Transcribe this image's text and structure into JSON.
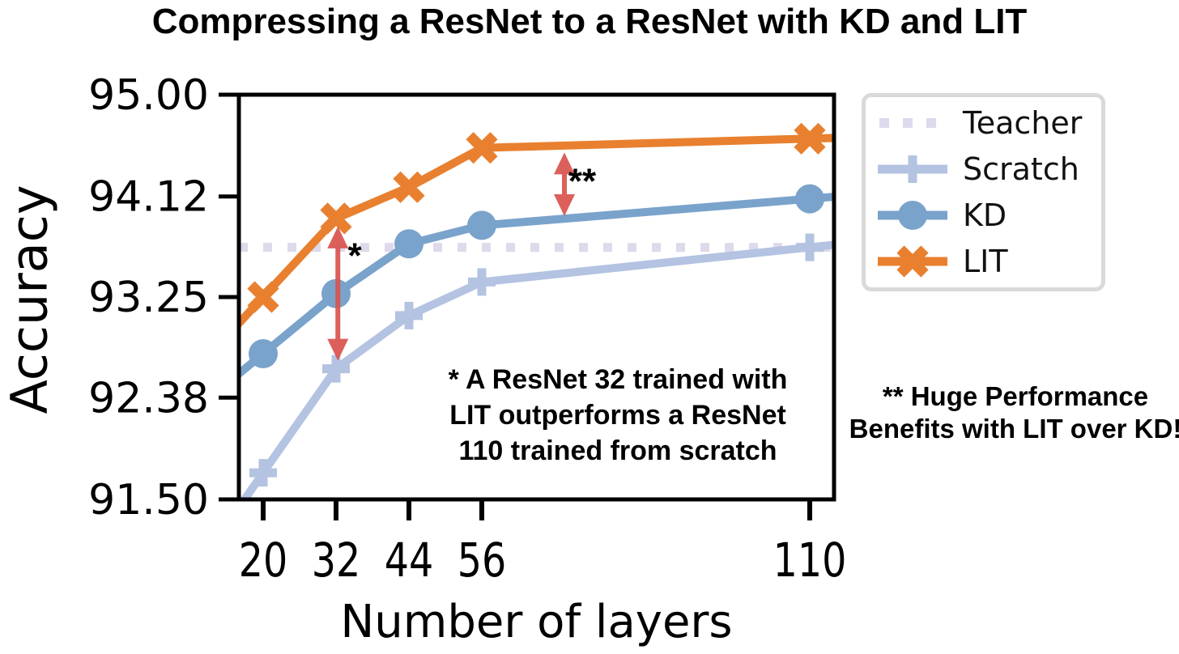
{
  "title": "Compressing a ResNet to a ResNet with KD and LIT",
  "chart_data": {
    "type": "line",
    "title": "Compressing a ResNet to a ResNet with KD and LIT",
    "xlabel": "Number of layers",
    "ylabel": "Accuracy",
    "x": [
      20,
      32,
      44,
      56,
      110
    ],
    "x_tick_labels": [
      "20",
      "32",
      "44",
      "56",
      "110"
    ],
    "y_ticks": [
      95.0,
      94.12,
      93.25,
      92.38,
      91.5
    ],
    "y_tick_labels": [
      "95.00",
      "94.12",
      "93.25",
      "92.38",
      "91.50"
    ],
    "xlim": [
      16,
      114
    ],
    "ylim": [
      91.5,
      95.0
    ],
    "grid": false,
    "legend_position": "upper right, outside axes",
    "series": [
      {
        "name": "Teacher",
        "style": "dotted",
        "marker": "none",
        "color": "#dedaec",
        "values": [
          93.68,
          93.68,
          93.68,
          93.68,
          93.68
        ],
        "note": "horizontal reference line at teacher accuracy"
      },
      {
        "name": "Scratch",
        "style": "solid",
        "marker": "plus",
        "color": "#b3c3e1",
        "values": [
          91.73,
          92.63,
          93.09,
          93.38,
          93.68
        ]
      },
      {
        "name": "KD",
        "style": "solid",
        "marker": "circle",
        "color": "#7aa3cb",
        "values": [
          92.76,
          93.28,
          93.71,
          93.87,
          94.1
        ]
      },
      {
        "name": "LIT",
        "style": "solid",
        "marker": "x",
        "color": "#e8802f",
        "values": [
          93.25,
          93.93,
          94.2,
          94.54,
          94.62
        ]
      }
    ],
    "arrows": [
      {
        "x": 32.3,
        "y_top": 93.86,
        "y_bottom": 92.7,
        "color": "#d9534f",
        "label": "*"
      },
      {
        "x": 69.6,
        "y_top": 94.5,
        "y_bottom": 93.95,
        "color": "#d9534f",
        "label": "**"
      }
    ]
  },
  "annotations": {
    "star1": "*",
    "star2": "**",
    "note_in_plot": "* A ResNet 32 trained with\nLIT outperforms a ResNet\n110 trained from scratch",
    "note_right": "** Huge Performance\nBenefits with LIT over KD!"
  },
  "legend": {
    "items": [
      "Teacher",
      "Scratch",
      "KD",
      "LIT"
    ]
  }
}
